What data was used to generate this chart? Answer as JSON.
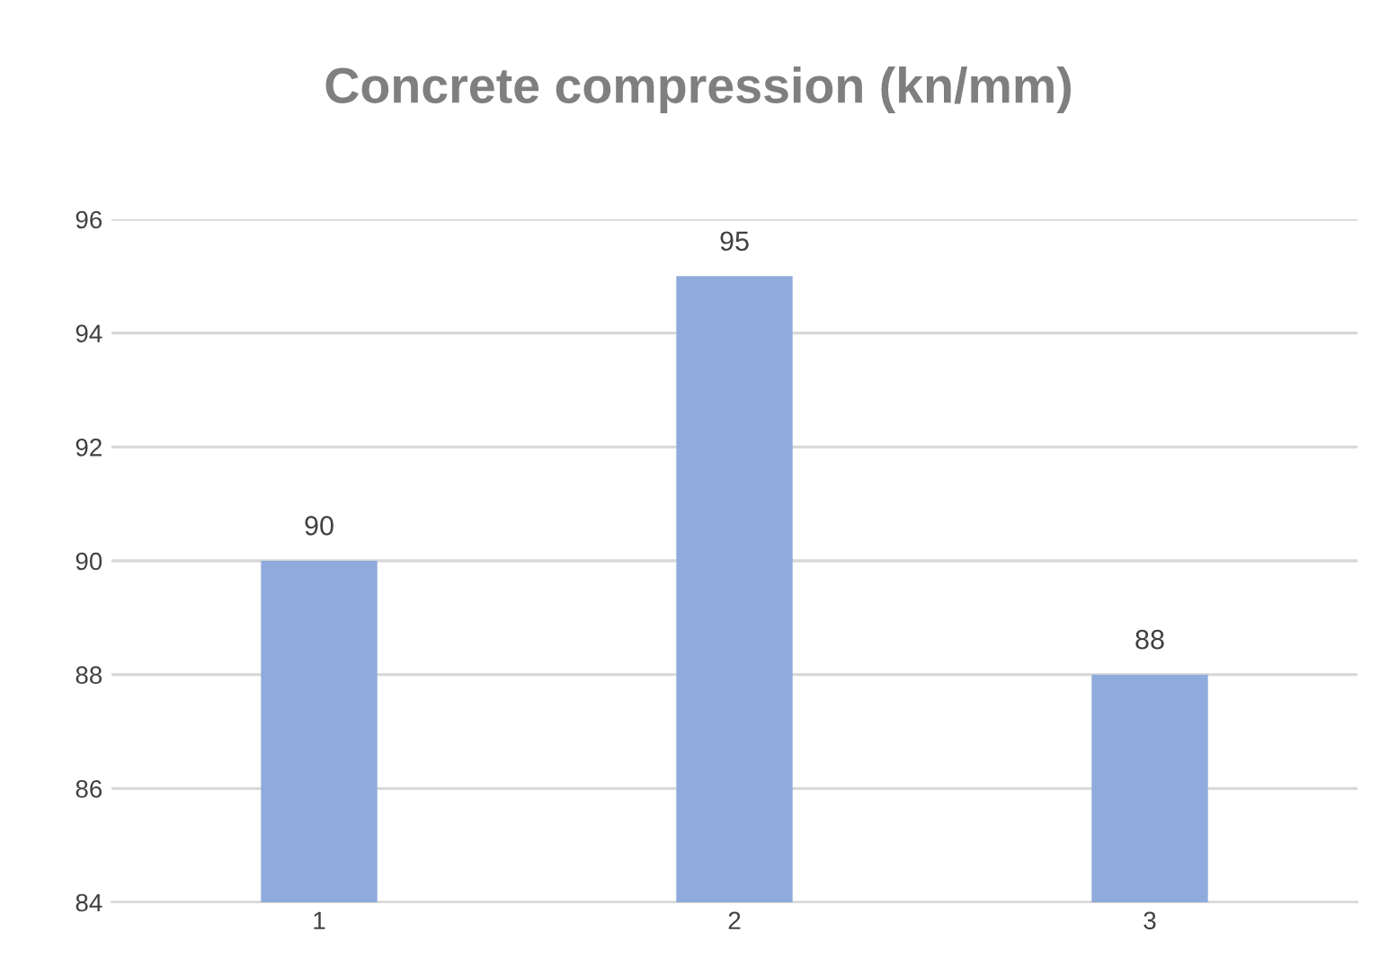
{
  "chart_data": {
    "type": "bar",
    "title": "Concrete compression (kn/mm)",
    "categories": [
      "1",
      "2",
      "3"
    ],
    "values": [
      90,
      95,
      88
    ],
    "color": "#8faadc",
    "ylim": [
      84,
      96
    ],
    "yticks": [
      84,
      86,
      88,
      90,
      92,
      94,
      96
    ],
    "grid": "y",
    "data_labels": true
  }
}
